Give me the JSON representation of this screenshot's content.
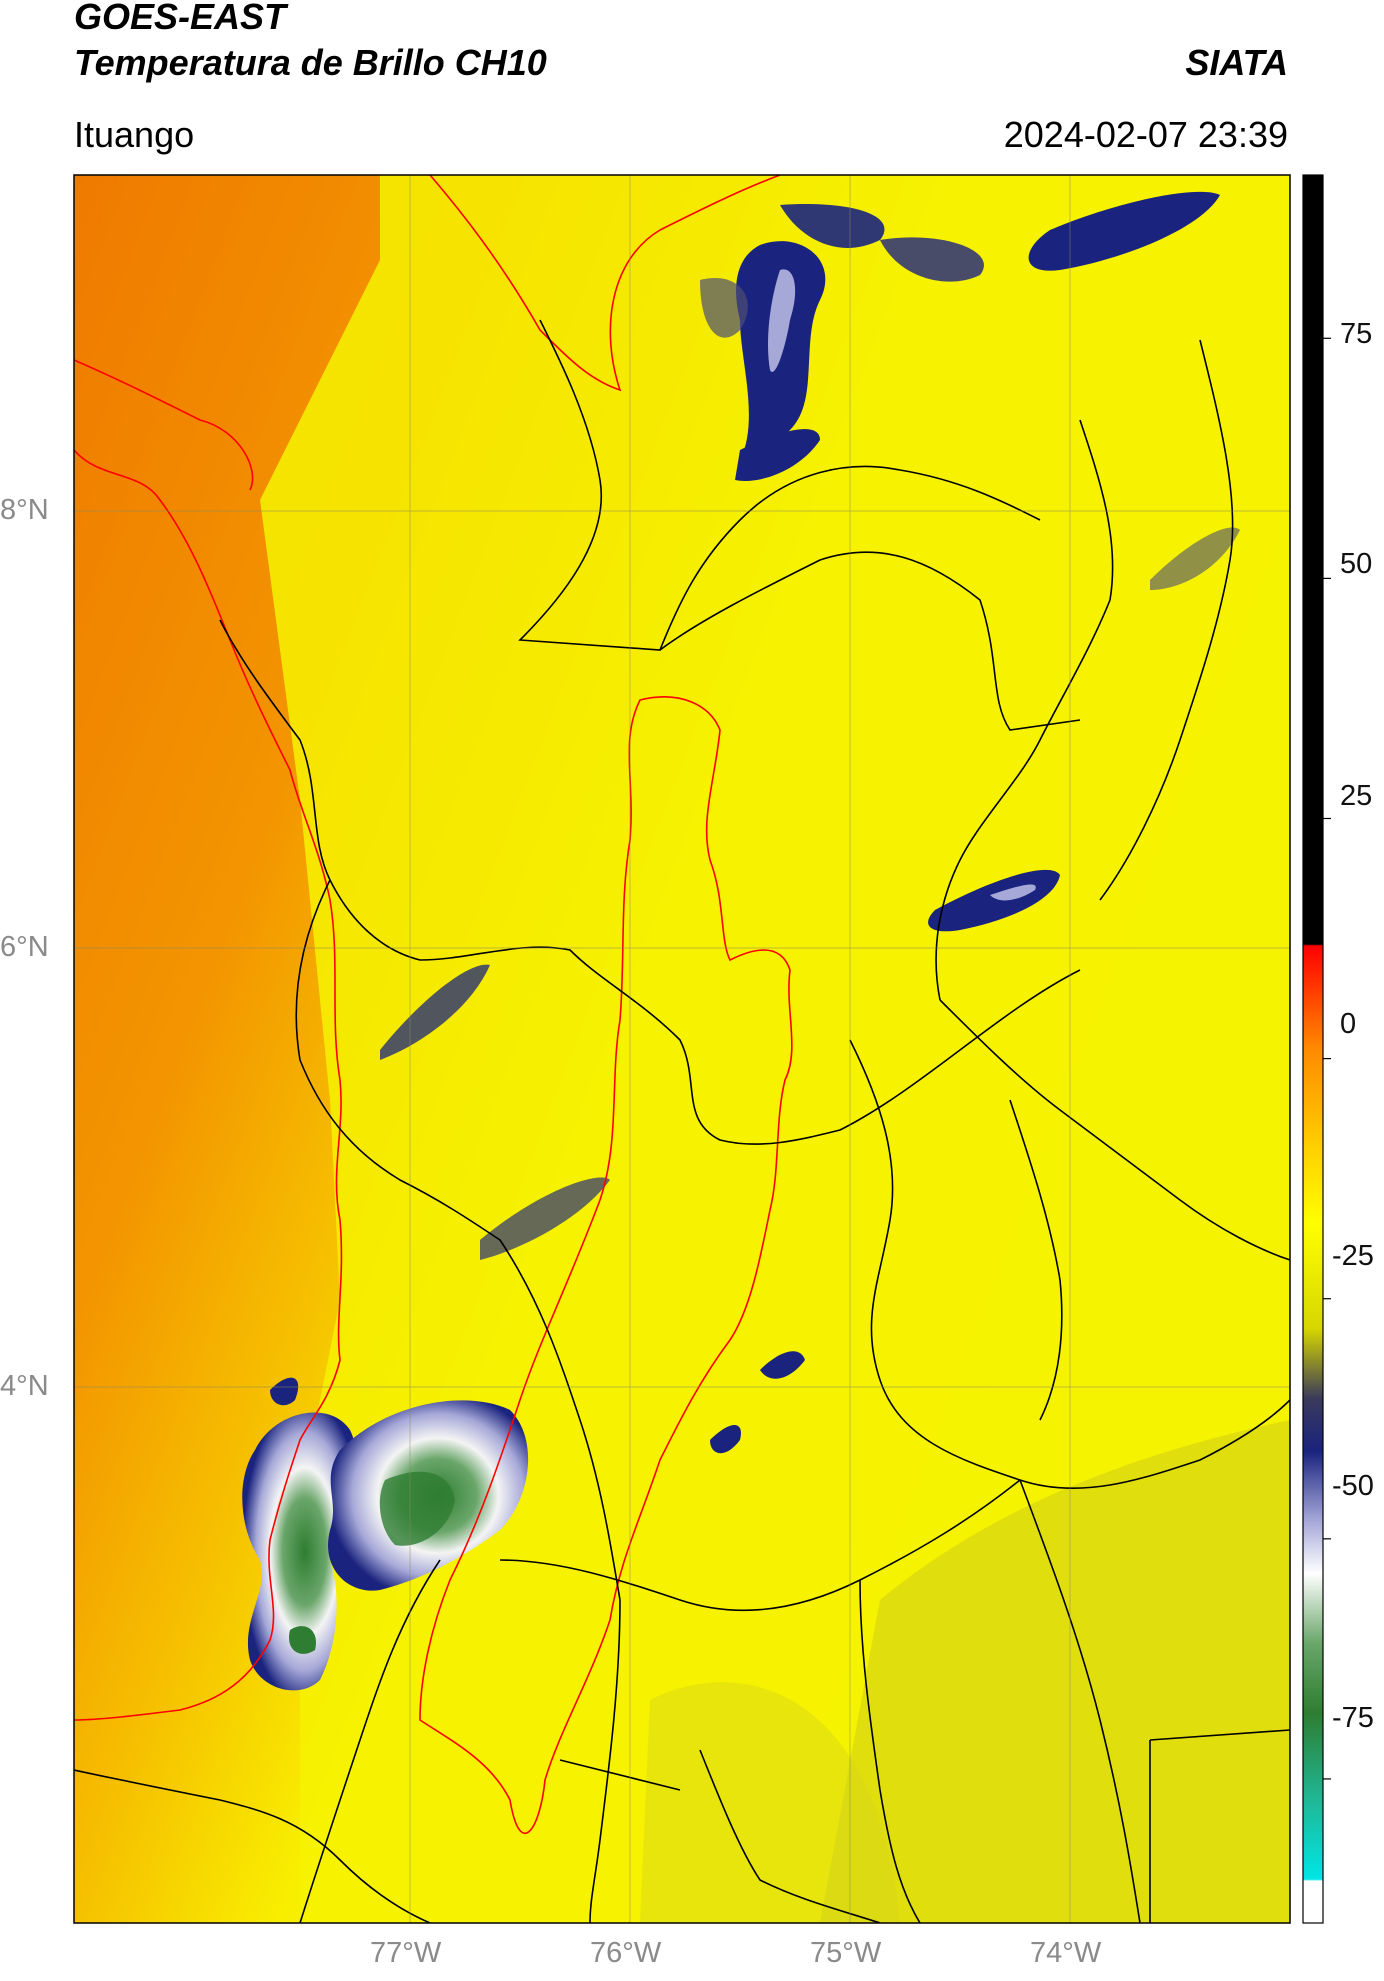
{
  "header": {
    "satellite": "GOES-EAST",
    "product": "Temperatura de Brillo CH10",
    "brand": "SIATA",
    "region": "Ituango",
    "timestamp": "2024-02-07 23:39"
  },
  "map": {
    "lat_labels": [
      "8°N",
      "6°N",
      "4°N"
    ],
    "lon_labels": [
      "77°W",
      "76°W",
      "75°W",
      "74°W"
    ],
    "colors": {
      "ocean_warm": "#f08c00",
      "land_base": "#f5f500",
      "coast": "#ff0000",
      "borders": "#000000",
      "cloud_cold": "#1a237e",
      "cloud_core": "#2e7d32",
      "cloud_white": "#f0f0f0"
    }
  },
  "colorbar": {
    "ticks": [
      "75",
      "50",
      "25",
      "0",
      "-25",
      "-50",
      "-75"
    ],
    "tick_values": [
      75,
      50,
      25,
      0,
      -25,
      -50,
      -75
    ],
    "range": [
      -90,
      92
    ]
  }
}
